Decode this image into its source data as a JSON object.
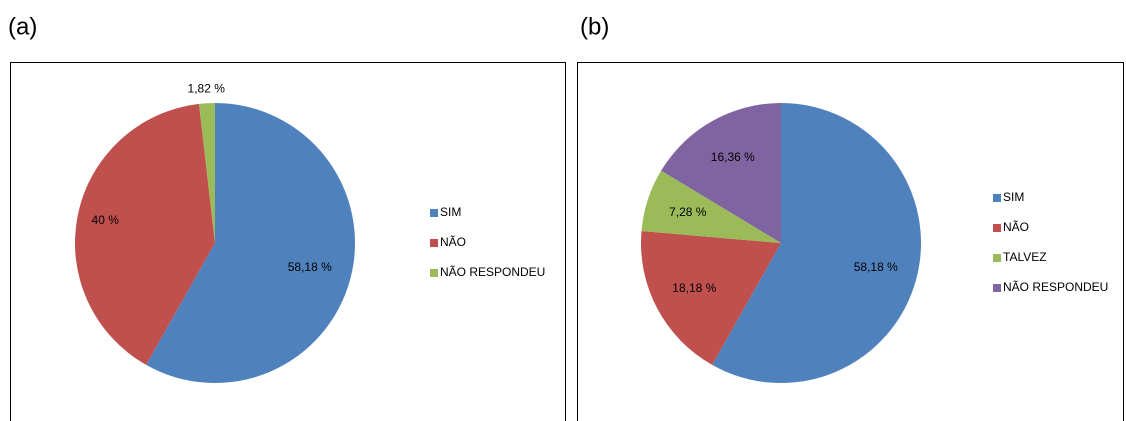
{
  "chart_data": [
    {
      "type": "pie",
      "panel": "(a)",
      "categories": [
        "SIM",
        "NÃO",
        "NÃO RESPONDEU"
      ],
      "values": [
        58.18,
        40,
        1.82
      ],
      "value_labels": [
        "58,18 %",
        "40 %",
        "1,82 %"
      ],
      "colors": [
        "#4f81bd",
        "#c0504d",
        "#9bbb59"
      ],
      "legend": "right"
    },
    {
      "type": "pie",
      "panel": "(b)",
      "categories": [
        "SIM",
        "NÃO",
        "TALVEZ",
        "NÃO RESPONDEU"
      ],
      "values": [
        58.18,
        18.18,
        7.28,
        16.36
      ],
      "value_labels": [
        "58,18 %",
        "18,18 %",
        "7,28 %",
        "16,36 %"
      ],
      "colors": [
        "#4f81bd",
        "#c0504d",
        "#9bbb59",
        "#8064a2"
      ],
      "legend": "right"
    }
  ]
}
